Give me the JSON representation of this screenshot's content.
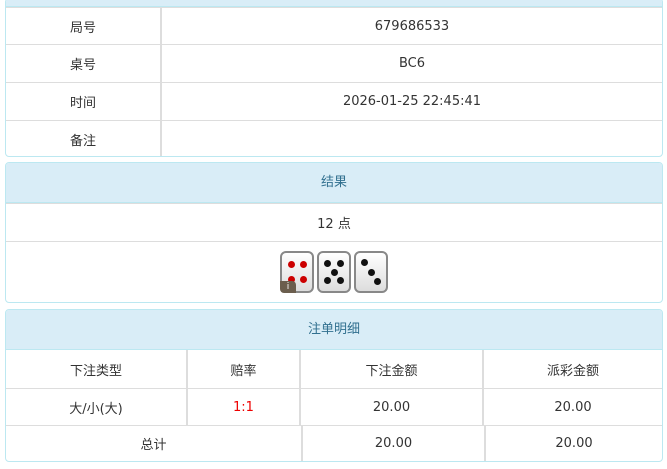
{
  "info": {
    "rows": [
      {
        "label": "局号",
        "value": "679686533"
      },
      {
        "label": "桌号",
        "value": "BC6"
      },
      {
        "label": "时间",
        "value": "2026-01-25 22:45:41"
      },
      {
        "label": "备注",
        "value": ""
      }
    ]
  },
  "result": {
    "title": "结果",
    "points": "12 点",
    "dice": [
      4,
      5,
      3
    ],
    "dice_info_icon": "i"
  },
  "bets": {
    "title": "注单明细",
    "headers": [
      "下注类型",
      "赔率",
      "下注金额",
      "派彩金额"
    ],
    "rows": [
      {
        "type": "大/小(大)",
        "odds": "1:1",
        "amount": "20.00",
        "payout": "20.00"
      }
    ],
    "total": {
      "label": "总计",
      "amount": "20.00",
      "payout": "20.00"
    },
    "odds_color": "#e00000"
  }
}
